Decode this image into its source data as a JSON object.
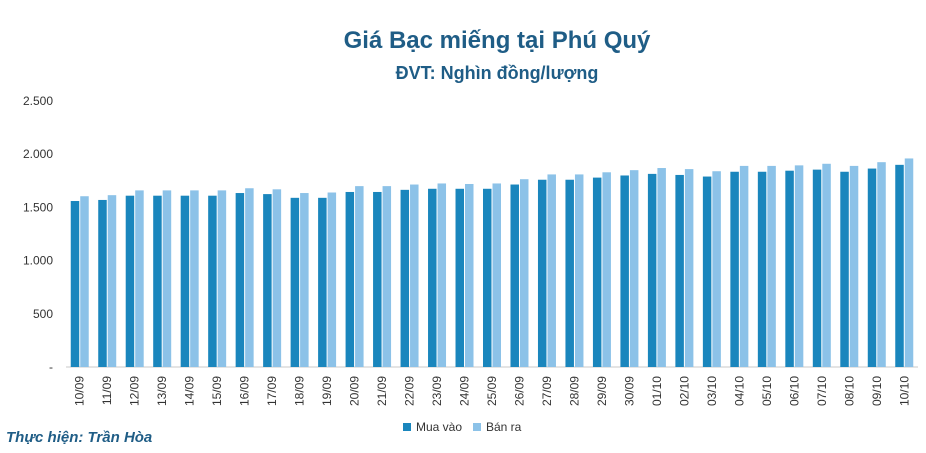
{
  "chart_data": {
    "type": "bar",
    "title": "Giá Bạc miếng tại Phú Quý",
    "subtitle": "ĐVT: Nghìn đồng/lượng",
    "categories": [
      "10/09",
      "11/09",
      "12/09",
      "13/09",
      "14/09",
      "15/09",
      "16/09",
      "17/09",
      "18/09",
      "19/09",
      "20/09",
      "21/09",
      "22/09",
      "23/09",
      "24/09",
      "25/09",
      "26/09",
      "27/09",
      "28/09",
      "29/09",
      "30/09",
      "01/10",
      "02/10",
      "03/10",
      "04/10",
      "05/10",
      "06/10",
      "07/10",
      "08/10",
      "09/10",
      "10/10"
    ],
    "series": [
      {
        "name": "Mua vào",
        "color": "#1a86bd",
        "values": [
          1560,
          1570,
          1610,
          1610,
          1610,
          1610,
          1635,
          1625,
          1590,
          1590,
          1645,
          1645,
          1665,
          1675,
          1675,
          1675,
          1715,
          1760,
          1760,
          1780,
          1800,
          1815,
          1805,
          1790,
          1835,
          1835,
          1845,
          1855,
          1835,
          1865,
          1900
        ]
      },
      {
        "name": "Bán ra",
        "color": "#8cc2e8",
        "values": [
          1605,
          1615,
          1660,
          1660,
          1660,
          1660,
          1680,
          1670,
          1635,
          1640,
          1700,
          1700,
          1715,
          1725,
          1720,
          1725,
          1765,
          1810,
          1810,
          1830,
          1850,
          1870,
          1860,
          1840,
          1890,
          1890,
          1895,
          1910,
          1890,
          1925,
          1960
        ]
      }
    ],
    "yticks": [
      "-",
      "500",
      "1.000",
      "1.500",
      "2.000",
      "2.500"
    ],
    "ylim": [
      0,
      2500
    ],
    "grid": false,
    "legend": "bottom",
    "credit": "Thực hiện: Trần Hòa"
  }
}
